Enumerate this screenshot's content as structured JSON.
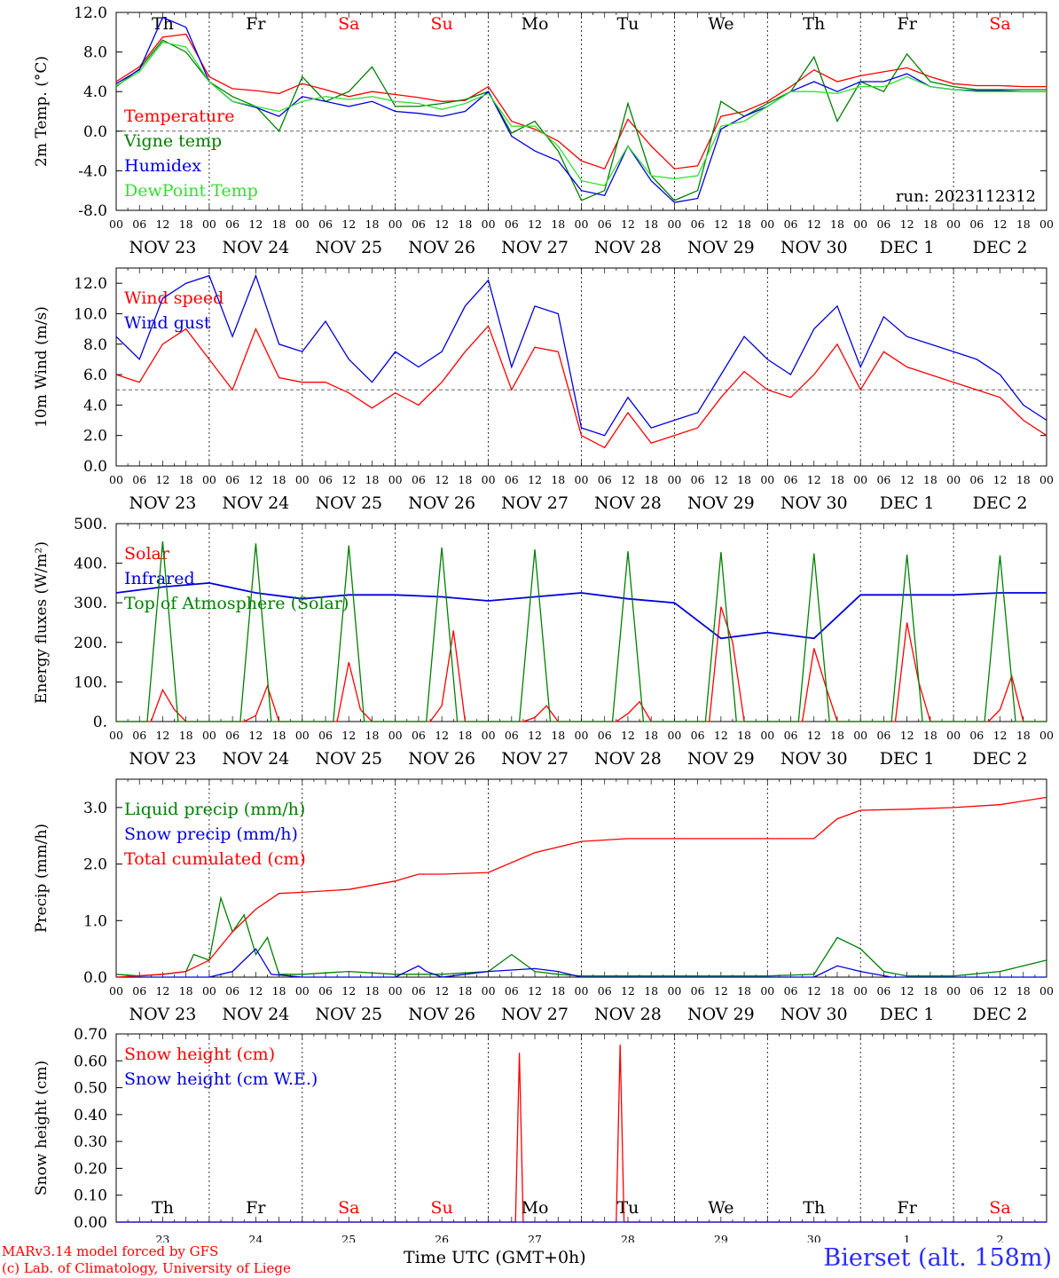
{
  "days": [
    "NOV 23",
    "NOV 24",
    "NOV 25",
    "NOV 26",
    "NOV 27",
    "NOV 28",
    "NOV 29",
    "NOV 30",
    "DEC  1",
    "DEC  2"
  ],
  "weekdays": [
    {
      "label": "Th",
      "weekend": false
    },
    {
      "label": "Fr",
      "weekend": false
    },
    {
      "label": "Sa",
      "weekend": true
    },
    {
      "label": "Su",
      "weekend": true
    },
    {
      "label": "Mo",
      "weekend": false
    },
    {
      "label": "Tu",
      "weekend": false
    },
    {
      "label": "We",
      "weekend": false
    },
    {
      "label": "Th",
      "weekend": false
    },
    {
      "label": "Fr",
      "weekend": false
    },
    {
      "label": "Sa",
      "weekend": true
    }
  ],
  "hour_ticks": [
    "00",
    "06",
    "12",
    "18"
  ],
  "day_numbers": [
    "23",
    "24",
    "25",
    "26",
    "27",
    "28",
    "29",
    "30",
    "1",
    "2"
  ],
  "colors": {
    "red": "#ff0000",
    "green": "#008000",
    "blue": "#0000e0",
    "lightgreen": "#33dd33",
    "weekend": "#ff0000"
  },
  "footer": {
    "credit1": "MARv3.14 model forced by GFS",
    "credit2": "(c) Lab. of Climatology, University of Liege",
    "xlabel": "Time UTC (GMT+0h)",
    "station": "Bierset (alt. 158m)"
  },
  "chart_data": [
    {
      "type": "line",
      "ylabel": "2m Temp. (°C)",
      "ylim": [
        -8,
        12
      ],
      "yticks": [
        "-8.0",
        "-4.0",
        "0.0",
        "4.0",
        "8.0",
        "12.0"
      ],
      "ref_line": 0,
      "run_label": "run: 2023112312",
      "x_unit": "hours since NOV 23 00 UTC",
      "xlim": [
        0,
        240
      ],
      "series": [
        {
          "name": "Temperature",
          "color": "red",
          "x": [
            0,
            6,
            12,
            18,
            24,
            30,
            36,
            42,
            48,
            54,
            60,
            66,
            72,
            78,
            84,
            90,
            96,
            102,
            108,
            114,
            120,
            126,
            132,
            138,
            144,
            150,
            156,
            162,
            168,
            174,
            180,
            186,
            192,
            198,
            204,
            210,
            216,
            222,
            228,
            234,
            240
          ],
          "values": [
            5,
            6.5,
            9.5,
            9.8,
            5.5,
            4.3,
            4.1,
            3.8,
            4.8,
            4.2,
            3.5,
            4.0,
            3.7,
            3.4,
            3.0,
            3.1,
            4.5,
            1.0,
            0.2,
            -1.0,
            -3.0,
            -3.8,
            1.2,
            -1.5,
            -3.8,
            -3.5,
            1.5,
            2.0,
            3.0,
            4.5,
            6.2,
            5.0,
            5.6,
            6.0,
            6.4,
            5.5,
            4.8,
            4.6,
            4.6,
            4.5,
            4.5
          ]
        },
        {
          "name": "Vigne temp",
          "color": "green",
          "x": [
            0,
            6,
            12,
            18,
            24,
            30,
            36,
            42,
            48,
            54,
            60,
            66,
            72,
            78,
            84,
            90,
            96,
            102,
            108,
            114,
            120,
            126,
            132,
            138,
            144,
            150,
            156,
            162,
            168,
            174,
            180,
            186,
            192,
            198,
            204,
            210,
            216,
            222,
            228,
            234,
            240
          ],
          "values": [
            4.5,
            6.3,
            9.2,
            8.0,
            5.0,
            3.5,
            2.5,
            0.0,
            5.5,
            3.0,
            4.0,
            6.5,
            2.5,
            2.5,
            2.8,
            3.2,
            4.0,
            -0.2,
            1.0,
            -2.0,
            -7.0,
            -6.0,
            2.8,
            -4.5,
            -7.0,
            -6.0,
            3.0,
            1.5,
            2.8,
            4.0,
            7.5,
            1.0,
            5.0,
            4.0,
            7.8,
            5.0,
            4.5,
            4.2,
            4.2,
            4.2,
            4.2
          ]
        },
        {
          "name": "Humidex",
          "color": "blue",
          "x": [
            0,
            6,
            12,
            18,
            24,
            30,
            36,
            42,
            48,
            54,
            60,
            66,
            72,
            78,
            84,
            90,
            96,
            102,
            108,
            114,
            120,
            126,
            132,
            138,
            144,
            150,
            156,
            162,
            168,
            174,
            180,
            186,
            192,
            198,
            204,
            210,
            216,
            222,
            228,
            234,
            240
          ],
          "values": [
            4.8,
            6.2,
            11.5,
            10.5,
            5.0,
            3.0,
            2.4,
            1.5,
            3.5,
            3.0,
            2.5,
            3.0,
            2.0,
            1.8,
            1.5,
            2.0,
            4.0,
            -0.5,
            -2.0,
            -3.0,
            -6.0,
            -6.5,
            -1.5,
            -5.0,
            -7.2,
            -6.8,
            0.2,
            1.5,
            2.5,
            4.0,
            5.0,
            4.0,
            5.0,
            5.0,
            5.8,
            4.5,
            4.2,
            4.1,
            4.1,
            4.0,
            4.0
          ]
        },
        {
          "name": "DewPoint Temp",
          "color": "lightgreen",
          "x": [
            0,
            6,
            12,
            18,
            24,
            30,
            36,
            42,
            48,
            54,
            60,
            66,
            72,
            78,
            84,
            90,
            96,
            102,
            108,
            114,
            120,
            126,
            132,
            138,
            144,
            150,
            156,
            162,
            168,
            174,
            180,
            186,
            192,
            198,
            204,
            210,
            216,
            222,
            228,
            234,
            240
          ],
          "values": [
            4.6,
            6.0,
            9.0,
            8.5,
            5.0,
            3.0,
            2.5,
            2.0,
            3.0,
            3.5,
            3.2,
            3.5,
            3.0,
            2.8,
            2.2,
            2.8,
            3.8,
            0.5,
            0.5,
            -1.5,
            -5.0,
            -5.5,
            -1.5,
            -4.5,
            -4.8,
            -4.5,
            0.5,
            1.0,
            2.5,
            4.0,
            4.0,
            3.8,
            4.5,
            4.5,
            5.5,
            4.5,
            4.2,
            4.0,
            4.0,
            4.0,
            4.0
          ]
        }
      ]
    },
    {
      "type": "line",
      "ylabel": "10m Wind (m/s)",
      "ylim": [
        0,
        13
      ],
      "yticks": [
        "0.0",
        "2.0",
        "4.0",
        "6.0",
        "8.0",
        "10.0",
        "12.0"
      ],
      "ref_line": 5,
      "x_unit": "hours since NOV 23 00 UTC",
      "xlim": [
        0,
        240
      ],
      "series": [
        {
          "name": "Wind speed",
          "color": "red",
          "x": [
            0,
            6,
            12,
            18,
            24,
            30,
            36,
            42,
            48,
            54,
            60,
            66,
            72,
            78,
            84,
            90,
            96,
            102,
            108,
            114,
            120,
            126,
            132,
            138,
            144,
            150,
            156,
            162,
            168,
            174,
            180,
            186,
            192,
            198,
            204,
            210,
            216,
            222,
            228,
            234,
            240
          ],
          "values": [
            6.0,
            5.5,
            8.0,
            9.0,
            7.0,
            5.0,
            9.0,
            5.8,
            5.5,
            5.5,
            4.8,
            3.8,
            4.8,
            4.0,
            5.5,
            7.5,
            9.2,
            5.0,
            7.8,
            7.5,
            2.0,
            1.2,
            3.5,
            1.5,
            2.0,
            2.5,
            4.5,
            6.2,
            5.0,
            4.5,
            6.0,
            8.0,
            5.0,
            7.5,
            6.5,
            6.0,
            5.5,
            5.0,
            4.5,
            3.0,
            2.0
          ]
        },
        {
          "name": "Wind gust",
          "color": "blue",
          "x": [
            0,
            6,
            12,
            18,
            24,
            30,
            36,
            42,
            48,
            54,
            60,
            66,
            72,
            78,
            84,
            90,
            96,
            102,
            108,
            114,
            120,
            126,
            132,
            138,
            144,
            150,
            156,
            162,
            168,
            174,
            180,
            186,
            192,
            198,
            204,
            210,
            216,
            222,
            228,
            234,
            240
          ],
          "values": [
            8.5,
            7.0,
            11.0,
            12.0,
            12.5,
            8.5,
            12.5,
            8.0,
            7.5,
            9.5,
            7.0,
            5.5,
            7.5,
            6.5,
            7.5,
            10.5,
            12.2,
            6.5,
            10.5,
            10.0,
            2.5,
            2.0,
            4.5,
            2.5,
            3.0,
            3.5,
            6.0,
            8.5,
            7.0,
            6.0,
            9.0,
            10.5,
            6.5,
            9.8,
            8.5,
            8.0,
            7.5,
            7.0,
            6.0,
            4.0,
            3.0
          ]
        }
      ]
    },
    {
      "type": "line",
      "ylabel": "Energy fluxes (W/m²)",
      "ylim": [
        0,
        500
      ],
      "yticks": [
        "0.",
        "100.",
        "200.",
        "300.",
        "400.",
        "500."
      ],
      "x_unit": "hours since NOV 23 00 UTC",
      "xlim": [
        0,
        240
      ],
      "series": [
        {
          "name": "Solar",
          "color": "red",
          "x": [
            0,
            9,
            12,
            15,
            18,
            33,
            36,
            39,
            42,
            57,
            60,
            63,
            66,
            81,
            84,
            87,
            90,
            105,
            108,
            111,
            114,
            129,
            132,
            135,
            138,
            153,
            156,
            159,
            162,
            177,
            180,
            183,
            186,
            201,
            204,
            207,
            210,
            225,
            228,
            231,
            234,
            240
          ],
          "values": [
            0,
            0,
            80,
            30,
            0,
            0,
            15,
            90,
            0,
            0,
            150,
            30,
            0,
            0,
            40,
            230,
            0,
            0,
            10,
            40,
            0,
            0,
            20,
            50,
            0,
            0,
            290,
            200,
            0,
            0,
            185,
            90,
            0,
            0,
            250,
            100,
            0,
            0,
            30,
            115,
            0,
            0
          ]
        },
        {
          "name": "Infrared",
          "color": "blue",
          "x": [
            0,
            12,
            24,
            36,
            48,
            60,
            72,
            84,
            96,
            108,
            120,
            132,
            144,
            156,
            168,
            180,
            192,
            204,
            216,
            228,
            240
          ],
          "values": [
            325,
            340,
            350,
            325,
            310,
            320,
            320,
            315,
            305,
            315,
            325,
            310,
            300,
            210,
            225,
            210,
            320,
            320,
            320,
            325,
            325
          ]
        },
        {
          "name": "Top of Atmosphere (Solar)",
          "color": "green",
          "x": [
            0,
            8,
            12,
            16,
            24,
            32,
            36,
            40,
            48,
            56,
            60,
            64,
            72,
            80,
            84,
            88,
            96,
            104,
            108,
            112,
            120,
            128,
            132,
            136,
            144,
            152,
            156,
            160,
            168,
            176,
            180,
            184,
            192,
            200,
            204,
            208,
            216,
            224,
            228,
            232,
            240
          ],
          "values": [
            0,
            0,
            455,
            0,
            0,
            0,
            450,
            0,
            0,
            0,
            445,
            0,
            0,
            0,
            440,
            0,
            0,
            0,
            435,
            0,
            0,
            0,
            430,
            0,
            0,
            0,
            428,
            0,
            0,
            0,
            425,
            0,
            0,
            0,
            422,
            0,
            0,
            0,
            420,
            0,
            0
          ]
        }
      ]
    },
    {
      "type": "line",
      "ylabel": "Precip (mm/h)",
      "ylim": [
        0,
        3.5
      ],
      "yticks": [
        "0.0",
        "1.0",
        "2.0",
        "3.0"
      ],
      "x_unit": "hours since NOV 23 00 UTC",
      "xlim": [
        0,
        240
      ],
      "series": [
        {
          "name": "Liquid precip (mm/h)",
          "color": "green",
          "x": [
            0,
            6,
            12,
            18,
            20,
            24,
            27,
            30,
            33,
            36,
            39,
            42,
            48,
            60,
            72,
            84,
            96,
            102,
            108,
            114,
            120,
            132,
            144,
            168,
            180,
            186,
            192,
            198,
            204,
            216,
            228,
            234,
            240
          ],
          "values": [
            0.05,
            0.02,
            0.05,
            0.1,
            0.4,
            0.3,
            1.4,
            0.8,
            1.1,
            0.4,
            0.7,
            0.05,
            0.05,
            0.1,
            0.05,
            0.05,
            0.1,
            0.4,
            0.1,
            0.05,
            0.02,
            0.02,
            0.02,
            0.02,
            0.05,
            0.7,
            0.5,
            0.1,
            0.02,
            0.02,
            0.1,
            0.2,
            0.3
          ]
        },
        {
          "name": "Snow precip (mm/h)",
          "color": "blue",
          "x": [
            0,
            24,
            30,
            36,
            40,
            48,
            72,
            78,
            80,
            84,
            96,
            108,
            114,
            120,
            132,
            180,
            186,
            192,
            200,
            240
          ],
          "values": [
            0,
            0,
            0.1,
            0.5,
            0.05,
            0,
            0,
            0.2,
            0.1,
            0,
            0.1,
            0.15,
            0.1,
            0,
            0,
            0,
            0.2,
            0.1,
            0,
            0
          ]
        },
        {
          "name": "Total cumulated (cm)",
          "color": "red",
          "x": [
            0,
            12,
            18,
            24,
            30,
            36,
            42,
            48,
            60,
            72,
            78,
            84,
            96,
            108,
            120,
            132,
            144,
            156,
            168,
            180,
            186,
            192,
            204,
            216,
            228,
            240
          ],
          "values": [
            0,
            0.05,
            0.1,
            0.3,
            0.8,
            1.2,
            1.48,
            1.5,
            1.55,
            1.7,
            1.82,
            1.82,
            1.85,
            2.2,
            2.4,
            2.45,
            2.45,
            2.45,
            2.45,
            2.45,
            2.8,
            2.95,
            2.97,
            3.0,
            3.05,
            3.18
          ]
        }
      ]
    },
    {
      "type": "line",
      "ylabel": "Snow height (cm)",
      "ylim": [
        0,
        0.7
      ],
      "yticks": [
        "0.00",
        "0.10",
        "0.20",
        "0.30",
        "0.40",
        "0.50",
        "0.60",
        "0.70"
      ],
      "x_unit": "hours since NOV 23 00 UTC",
      "xlim": [
        0,
        240
      ],
      "series": [
        {
          "name": "Snow height (cm)",
          "color": "red",
          "x": [
            0,
            103,
            104,
            105,
            129,
            130,
            131,
            240
          ],
          "values": [
            0,
            0,
            0.63,
            0,
            0,
            0.66,
            0,
            0
          ]
        },
        {
          "name": "Snow height (cm W.E.)",
          "color": "blue",
          "x": [
            0,
            240
          ],
          "values": [
            0,
            0
          ]
        }
      ]
    }
  ]
}
